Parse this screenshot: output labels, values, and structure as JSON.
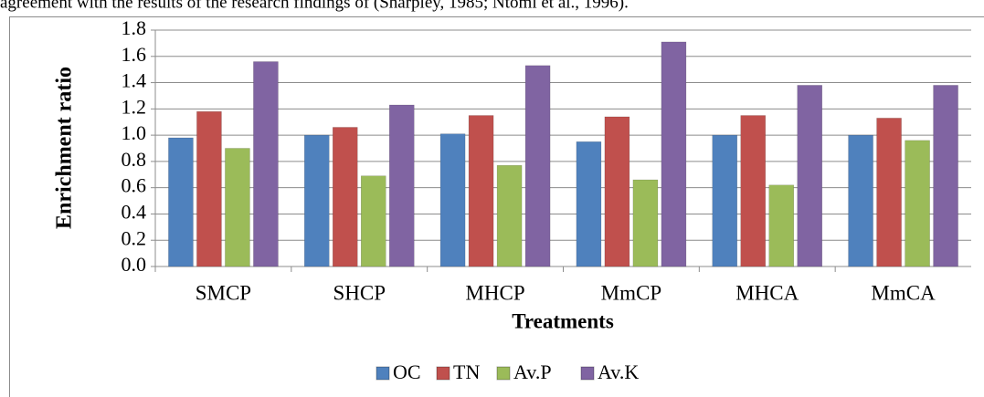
{
  "caption_text": "agreement with the results of the research findings of (Sharpley, 1985; Ntomi et al., 1996).",
  "chart_data": {
    "type": "bar",
    "y_label": "Enrichment ratio",
    "x_label": "Treatments",
    "categories": [
      "SMCP",
      "SHCP",
      "MHCP",
      "MmCP",
      "MHCA",
      "MmCA"
    ],
    "series": [
      {
        "name": "OC",
        "color": "#4f81bd",
        "values": [
          0.98,
          1.0,
          1.01,
          0.95,
          1.0,
          1.0
        ]
      },
      {
        "name": "TN",
        "color": "#c0504d",
        "values": [
          1.18,
          1.06,
          1.15,
          1.14,
          1.15,
          1.13
        ]
      },
      {
        "name": "Av.P",
        "color": "#9bbb59",
        "values": [
          0.9,
          0.69,
          0.77,
          0.66,
          0.62,
          0.96
        ]
      },
      {
        "name": "Av.K",
        "color": "#8064a2",
        "values": [
          1.56,
          1.23,
          1.53,
          1.71,
          1.38,
          1.38
        ]
      }
    ],
    "ylim": [
      0,
      1.8
    ],
    "yticks": [
      {
        "value": 0,
        "label": "0.0"
      },
      0.2,
      0.4,
      0.6,
      0.8,
      {
        "value": 1,
        "label": "1.0"
      },
      1.2,
      1.4,
      1.6,
      1.8
    ],
    "grid": true,
    "legend": "bottom"
  }
}
